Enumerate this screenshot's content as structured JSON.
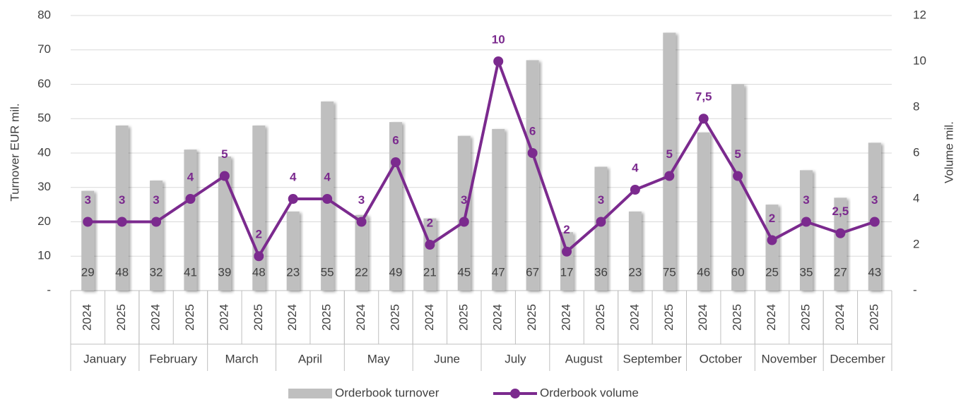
{
  "chart_data": {
    "type": "bar_line",
    "categories": [
      "2024",
      "2025",
      "2024",
      "2025",
      "2024",
      "2025",
      "2024",
      "2025",
      "2024",
      "2025",
      "2024",
      "2025",
      "2024",
      "2025",
      "2024",
      "2025",
      "2024",
      "2025",
      "2024",
      "2025",
      "2024",
      "2025",
      "2024",
      "2025"
    ],
    "groups": [
      "January",
      "February",
      "March",
      "April",
      "May",
      "June",
      "July",
      "August",
      "September",
      "October",
      "November",
      "December"
    ],
    "ylabel": "Turnover EUR mil.",
    "y2label": "Volume mil.",
    "ylim": [
      0,
      80
    ],
    "yticks": [
      {
        "value": 0,
        "label": "-"
      },
      10,
      20,
      30,
      40,
      50,
      60,
      70,
      80
    ],
    "y2lim": [
      0,
      12
    ],
    "y2ticks": [
      {
        "value": 0,
        "label": "-"
      },
      2,
      4,
      6,
      8,
      10,
      12
    ],
    "grid": true,
    "legend": "bottom",
    "series": [
      {
        "name": "Orderbook turnover",
        "type": "bar",
        "color": "#bfbfbf",
        "values": [
          29,
          48,
          32,
          41,
          39,
          48,
          23,
          55,
          22,
          49,
          21,
          45,
          47,
          67,
          17,
          36,
          23,
          75,
          46,
          60,
          25,
          35,
          27,
          43
        ]
      },
      {
        "name": "Orderbook volume",
        "type": "line",
        "axis": "y2",
        "color": "#7b2a8e",
        "values": [
          3,
          3,
          3,
          4,
          5,
          1.5,
          4,
          4,
          3,
          5.6,
          2,
          3,
          10,
          6,
          1.7,
          3,
          4.4,
          5,
          7.5,
          5,
          2.2,
          3,
          2.5,
          3
        ],
        "value_labels": [
          "3",
          "3",
          "3",
          "4",
          "5",
          "2",
          "4",
          "4",
          "3",
          "6",
          "2",
          "3",
          "10",
          "6",
          "2",
          "3",
          "4",
          "5",
          "7,5",
          "5",
          "2",
          "3",
          "2,5",
          "3"
        ]
      }
    ]
  }
}
